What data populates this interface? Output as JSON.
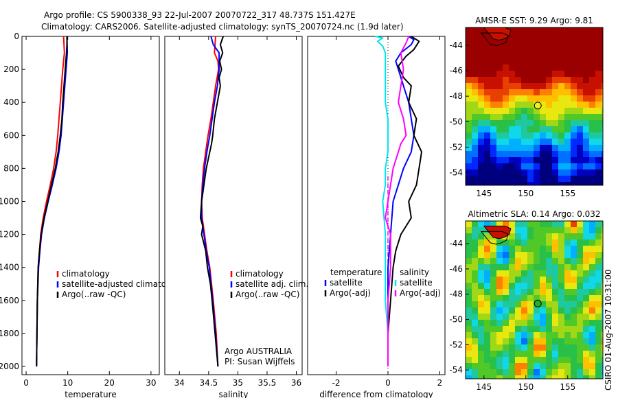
{
  "header": {
    "line1": "Argo profile: CS 5900338_93 22-Jul-2007 20070722_317 48.737S 151.427E",
    "line2": "Climatology: CARS2006. Satellite-adjusted climatology: synTS_20070724.nc (1.9d later)"
  },
  "footer": {
    "stamp": "CSIRO 01-Aug-2007 10:31:00",
    "agency": "Argo AUSTRALIA",
    "pi": "PI: Susan Wijffels"
  },
  "chart_data": [
    {
      "type": "line",
      "id": "temperature",
      "xlabel": "temperature",
      "xlim": [
        -1,
        32
      ],
      "ylim": [
        0,
        2050
      ],
      "xticks": [
        0,
        10,
        20,
        30
      ],
      "xtick_labels": [
        "0",
        "10",
        "20",
        "30"
      ],
      "yticks": [
        0,
        200,
        400,
        600,
        800,
        1000,
        1200,
        1400,
        1600,
        1800,
        2000
      ],
      "ytick_labels": [
        "0",
        "200",
        "400",
        "600",
        "800",
        "1000",
        "1200",
        "1400",
        "1600",
        "1800",
        "2000"
      ],
      "legend": [
        "climatology",
        "satellite-adjusted climatology",
        "Argo(..raw -QC)"
      ],
      "series": [
        {
          "name": "climatology",
          "color": "#ff0000",
          "depth": [
            0,
            100,
            200,
            300,
            400,
            500,
            600,
            700,
            800,
            900,
            1000,
            1100,
            1200,
            1300,
            1400,
            1600,
            1800,
            2000
          ],
          "values": [
            9.0,
            9.2,
            8.8,
            8.5,
            8.2,
            7.9,
            7.6,
            7.2,
            6.6,
            5.8,
            4.9,
            4.1,
            3.5,
            3.2,
            2.9,
            2.7,
            2.6,
            2.5
          ]
        },
        {
          "name": "satellite-adjusted climatology",
          "color": "#0000ff",
          "depth": [
            0,
            100,
            200,
            300,
            400,
            500,
            600,
            700,
            800,
            900,
            1000,
            1100,
            1200,
            1300,
            1400,
            1600,
            1800,
            2000
          ],
          "values": [
            9.8,
            9.9,
            9.6,
            9.3,
            9.0,
            8.7,
            8.4,
            7.9,
            7.2,
            6.3,
            5.3,
            4.4,
            3.7,
            3.3,
            3.0,
            2.7,
            2.6,
            2.5
          ]
        },
        {
          "name": "Argo(..raw -QC)",
          "color": "#000000",
          "depth": [
            0,
            50,
            100,
            200,
            300,
            400,
            500,
            600,
            700,
            800,
            900,
            1000,
            1100,
            1200,
            1300,
            1400,
            1600,
            1800,
            2000
          ],
          "values": [
            9.8,
            9.8,
            9.7,
            9.4,
            9.1,
            8.8,
            8.6,
            8.2,
            7.7,
            7.0,
            6.1,
            5.2,
            4.3,
            3.6,
            3.2,
            2.9,
            2.7,
            2.6,
            2.5
          ]
        }
      ]
    },
    {
      "type": "line",
      "id": "salinity",
      "xlabel": "salinity",
      "xlim": [
        33.75,
        36.1
      ],
      "ylim": [
        0,
        2050
      ],
      "xticks": [
        34,
        34.5,
        35,
        35.5,
        36
      ],
      "xtick_labels": [
        "34",
        "34.5",
        "35",
        "35.5",
        "36"
      ],
      "legend": [
        "climatology",
        "satellite adj. clim.",
        "Argo(..raw -QC)"
      ],
      "series": [
        {
          "name": "climatology",
          "color": "#ff0000",
          "depth": [
            0,
            100,
            150,
            200,
            300,
            400,
            500,
            600,
            700,
            800,
            900,
            1000,
            1100,
            1200,
            1300,
            1400,
            1600,
            1800,
            2000
          ],
          "values": [
            34.62,
            34.6,
            34.66,
            34.67,
            34.62,
            34.58,
            34.54,
            34.49,
            34.45,
            34.41,
            34.39,
            34.38,
            34.39,
            34.43,
            34.47,
            34.52,
            34.58,
            34.63,
            34.66
          ]
        },
        {
          "name": "satellite adj. clim.",
          "color": "#0000ff",
          "depth": [
            0,
            50,
            100,
            200,
            300,
            400,
            500,
            600,
            700,
            800,
            900,
            1000,
            1100,
            1200,
            1300,
            1400,
            1600,
            1800,
            2000
          ],
          "values": [
            34.54,
            34.58,
            34.68,
            34.68,
            34.65,
            34.6,
            34.56,
            34.52,
            34.47,
            34.43,
            34.4,
            34.38,
            34.38,
            34.42,
            34.46,
            34.51,
            34.57,
            34.62,
            34.66
          ]
        },
        {
          "name": "Argo(..raw -QC)",
          "color": "#000000",
          "depth": [
            0,
            50,
            100,
            150,
            200,
            250,
            300,
            400,
            500,
            600,
            650,
            700,
            800,
            900,
            1000,
            1100,
            1150,
            1200,
            1300,
            1400,
            1500,
            1600,
            1800,
            2000
          ],
          "values": [
            34.75,
            34.7,
            34.74,
            34.69,
            34.72,
            34.68,
            34.7,
            34.65,
            34.6,
            34.57,
            34.55,
            34.52,
            34.46,
            34.42,
            34.38,
            34.36,
            34.4,
            34.38,
            34.45,
            34.48,
            34.53,
            34.56,
            34.61,
            34.66
          ]
        }
      ]
    },
    {
      "type": "line",
      "id": "difference",
      "xlabel": "difference from climatology",
      "xlim": [
        -3.1,
        2.2
      ],
      "ylim": [
        0,
        2050
      ],
      "xticks": [
        -2,
        0,
        2
      ],
      "xtick_labels": [
        "-2",
        "0",
        "2"
      ],
      "legend_headers": [
        "temperature",
        "salinity"
      ],
      "legend": [
        "satellite",
        "Argo(-adj)",
        "satellite",
        "Argo(-adj)"
      ],
      "series": [
        {
          "name": "temperature satellite",
          "color": "#0000ff",
          "depth": [
            0,
            20,
            50,
            100,
            150,
            200,
            300,
            400,
            500,
            600,
            700,
            800,
            900,
            1000,
            1200,
            1400,
            1600,
            1800,
            2000
          ],
          "values": [
            0.8,
            1.0,
            0.9,
            0.5,
            0.3,
            0.4,
            0.6,
            0.8,
            0.9,
            1.0,
            0.9,
            0.6,
            0.4,
            0.2,
            0.1,
            0.0,
            0.0,
            0.0,
            0.0
          ]
        },
        {
          "name": "temperature Argo(-adj)",
          "color": "#000000",
          "depth": [
            0,
            30,
            80,
            120,
            180,
            250,
            300,
            400,
            500,
            600,
            700,
            800,
            900,
            1000,
            1100,
            1200,
            1300,
            1400,
            1600,
            1800,
            2000
          ],
          "values": [
            0.9,
            1.2,
            1.0,
            0.7,
            0.4,
            0.6,
            0.9,
            0.8,
            1.1,
            1.0,
            1.3,
            1.2,
            1.1,
            0.8,
            0.9,
            0.5,
            0.3,
            0.2,
            0.1,
            0.0,
            0.0
          ]
        },
        {
          "name": "salinity satellite",
          "color": "#00e5ee",
          "depth": [
            0,
            10,
            30,
            60,
            100,
            200,
            300,
            400,
            500,
            600,
            700,
            800,
            900,
            1000,
            1200,
            1400,
            1600,
            1800,
            2000
          ],
          "values": [
            -0.5,
            -0.2,
            -0.4,
            -0.2,
            -0.1,
            -0.1,
            -0.1,
            -0.1,
            0.0,
            0.0,
            0.0,
            -0.1,
            -0.1,
            -0.2,
            -0.1,
            -0.1,
            -0.1,
            0.0,
            0.0
          ]
        },
        {
          "name": "salinity Argo(-adj)",
          "color": "#ff00ff",
          "depth": [
            0,
            40,
            100,
            200,
            300,
            400,
            500,
            600,
            650,
            700,
            800,
            900,
            1000,
            1100,
            1200,
            1400,
            1600,
            1800,
            2000
          ],
          "values": [
            0.8,
            0.7,
            0.5,
            0.6,
            0.5,
            0.4,
            0.6,
            0.7,
            0.5,
            0.4,
            0.2,
            0.1,
            0.0,
            -0.1,
            0.1,
            0.1,
            0.0,
            0.0,
            0.0
          ]
        }
      ]
    },
    {
      "type": "heatmap",
      "id": "sst_map",
      "title": "AMSR-E SST: 9.29 Argo: 9.81",
      "xlim": [
        142.8,
        159.2
      ],
      "ylim": [
        -55.0,
        -42.6
      ],
      "xticks": [
        145,
        150,
        155
      ],
      "xtick_labels": [
        "145",
        "150",
        "155"
      ],
      "yticks": [
        -44,
        -46,
        -48,
        -50,
        -52,
        -54
      ],
      "ytick_labels": [
        "-44",
        "-46",
        "-48",
        "-50",
        "-52",
        "-54"
      ],
      "float_position": [
        151.427,
        -48.737
      ],
      "marker_color": "#f0ee20"
    },
    {
      "type": "heatmap",
      "id": "sla_map",
      "title": "Altimetric SLA: 0.14 Argo: 0.032",
      "xlim": [
        142.8,
        159.2
      ],
      "ylim": [
        -54.7,
        -42.2
      ],
      "xticks": [
        145,
        150,
        155
      ],
      "xtick_labels": [
        "145",
        "150",
        "155"
      ],
      "yticks": [
        -44,
        -46,
        -48,
        -50,
        -52,
        -54
      ],
      "ytick_labels": [
        "-44",
        "-46",
        "-48",
        "-50",
        "-52",
        "-54"
      ],
      "float_position": [
        151.427,
        -48.737
      ],
      "marker_color": "#2fa82f"
    }
  ]
}
